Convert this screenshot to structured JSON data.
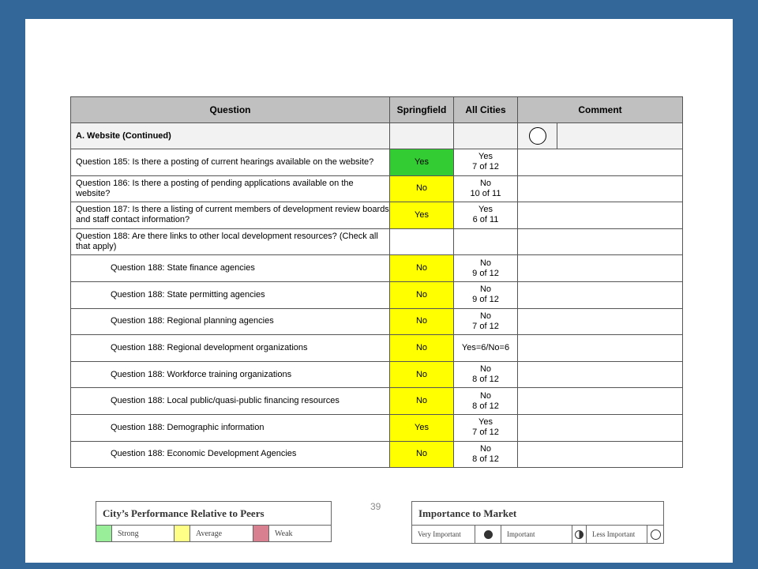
{
  "table": {
    "headers": {
      "question": "Question",
      "springfield": "Springfield",
      "all_cities": "All Cities",
      "comment": "Comment"
    },
    "section": {
      "title": "A. Website (Continued)",
      "importance": "empty-circle-icon"
    },
    "rows": [
      {
        "question": "Question 185: Is there a posting of current hearings available on the website?",
        "springfield": "Yes",
        "springfield_color": "#33cc33",
        "all_line1": "Yes",
        "all_line2": "7 of 12"
      },
      {
        "question": "Question 186: Is there a posting of pending applications available on the website?",
        "springfield": "No",
        "springfield_color": "#ffff00",
        "all_line1": "No",
        "all_line2": "10 of 11"
      },
      {
        "question": "Question 187: Is there a listing of current members of development review boards and staff contact information?",
        "springfield": "Yes",
        "springfield_color": "#ffff00",
        "all_line1": "Yes",
        "all_line2": "6 of 11"
      },
      {
        "question": "Question 188: Are there links to other local development resources? (Check all that apply)",
        "springfield": "",
        "all_line1": "",
        "all_line2": ""
      },
      {
        "question": "Question 188: State finance agencies",
        "springfield": "No",
        "springfield_color": "#ffff00",
        "all_line1": "No",
        "all_line2": "9 of 12"
      },
      {
        "question": "Question 188: State permitting agencies",
        "springfield": "No",
        "springfield_color": "#ffff00",
        "all_line1": "No",
        "all_line2": "9 of 12"
      },
      {
        "question": "Question 188: Regional planning agencies",
        "springfield": "No",
        "springfield_color": "#ffff00",
        "all_line1": "No",
        "all_line2": "7 of 12"
      },
      {
        "question": "Question 188: Regional development organizations",
        "springfield": "No",
        "springfield_color": "#ffff00",
        "all_line1": "Yes=6/No=6",
        "all_line2": ""
      },
      {
        "question": "Question 188: Workforce training organizations",
        "springfield": "No",
        "springfield_color": "#ffff00",
        "all_line1": "No",
        "all_line2": "8 of 12"
      },
      {
        "question": "Question 188: Local public/quasi-public financing resources",
        "springfield": "No",
        "springfield_color": "#ffff00",
        "all_line1": "No",
        "all_line2": "8 of 12"
      },
      {
        "question": "Question 188: Demographic information",
        "springfield": "Yes",
        "springfield_color": "#ffff00",
        "all_line1": "Yes",
        "all_line2": "7 of 12"
      },
      {
        "question": "Question 188: Economic Development Agencies",
        "springfield": "No",
        "springfield_color": "#ffff00",
        "all_line1": "No",
        "all_line2": "8 of 12"
      }
    ]
  },
  "page_number": "39",
  "performance_legend": {
    "title": "City’s Performance Relative to Peers",
    "strong": "Strong",
    "strong_color": "#99ee99",
    "average": "Average",
    "average_color": "#ffff88",
    "weak": "Weak",
    "weak_color": "#d98090"
  },
  "importance_legend": {
    "title": "Importance to Market",
    "very_important": "Very Important",
    "important": "Important",
    "less_important": "Less Important",
    "very_icon": "filled-circle-icon",
    "important_icon": "half-circle-icon",
    "less_icon": "empty-circle-icon"
  }
}
